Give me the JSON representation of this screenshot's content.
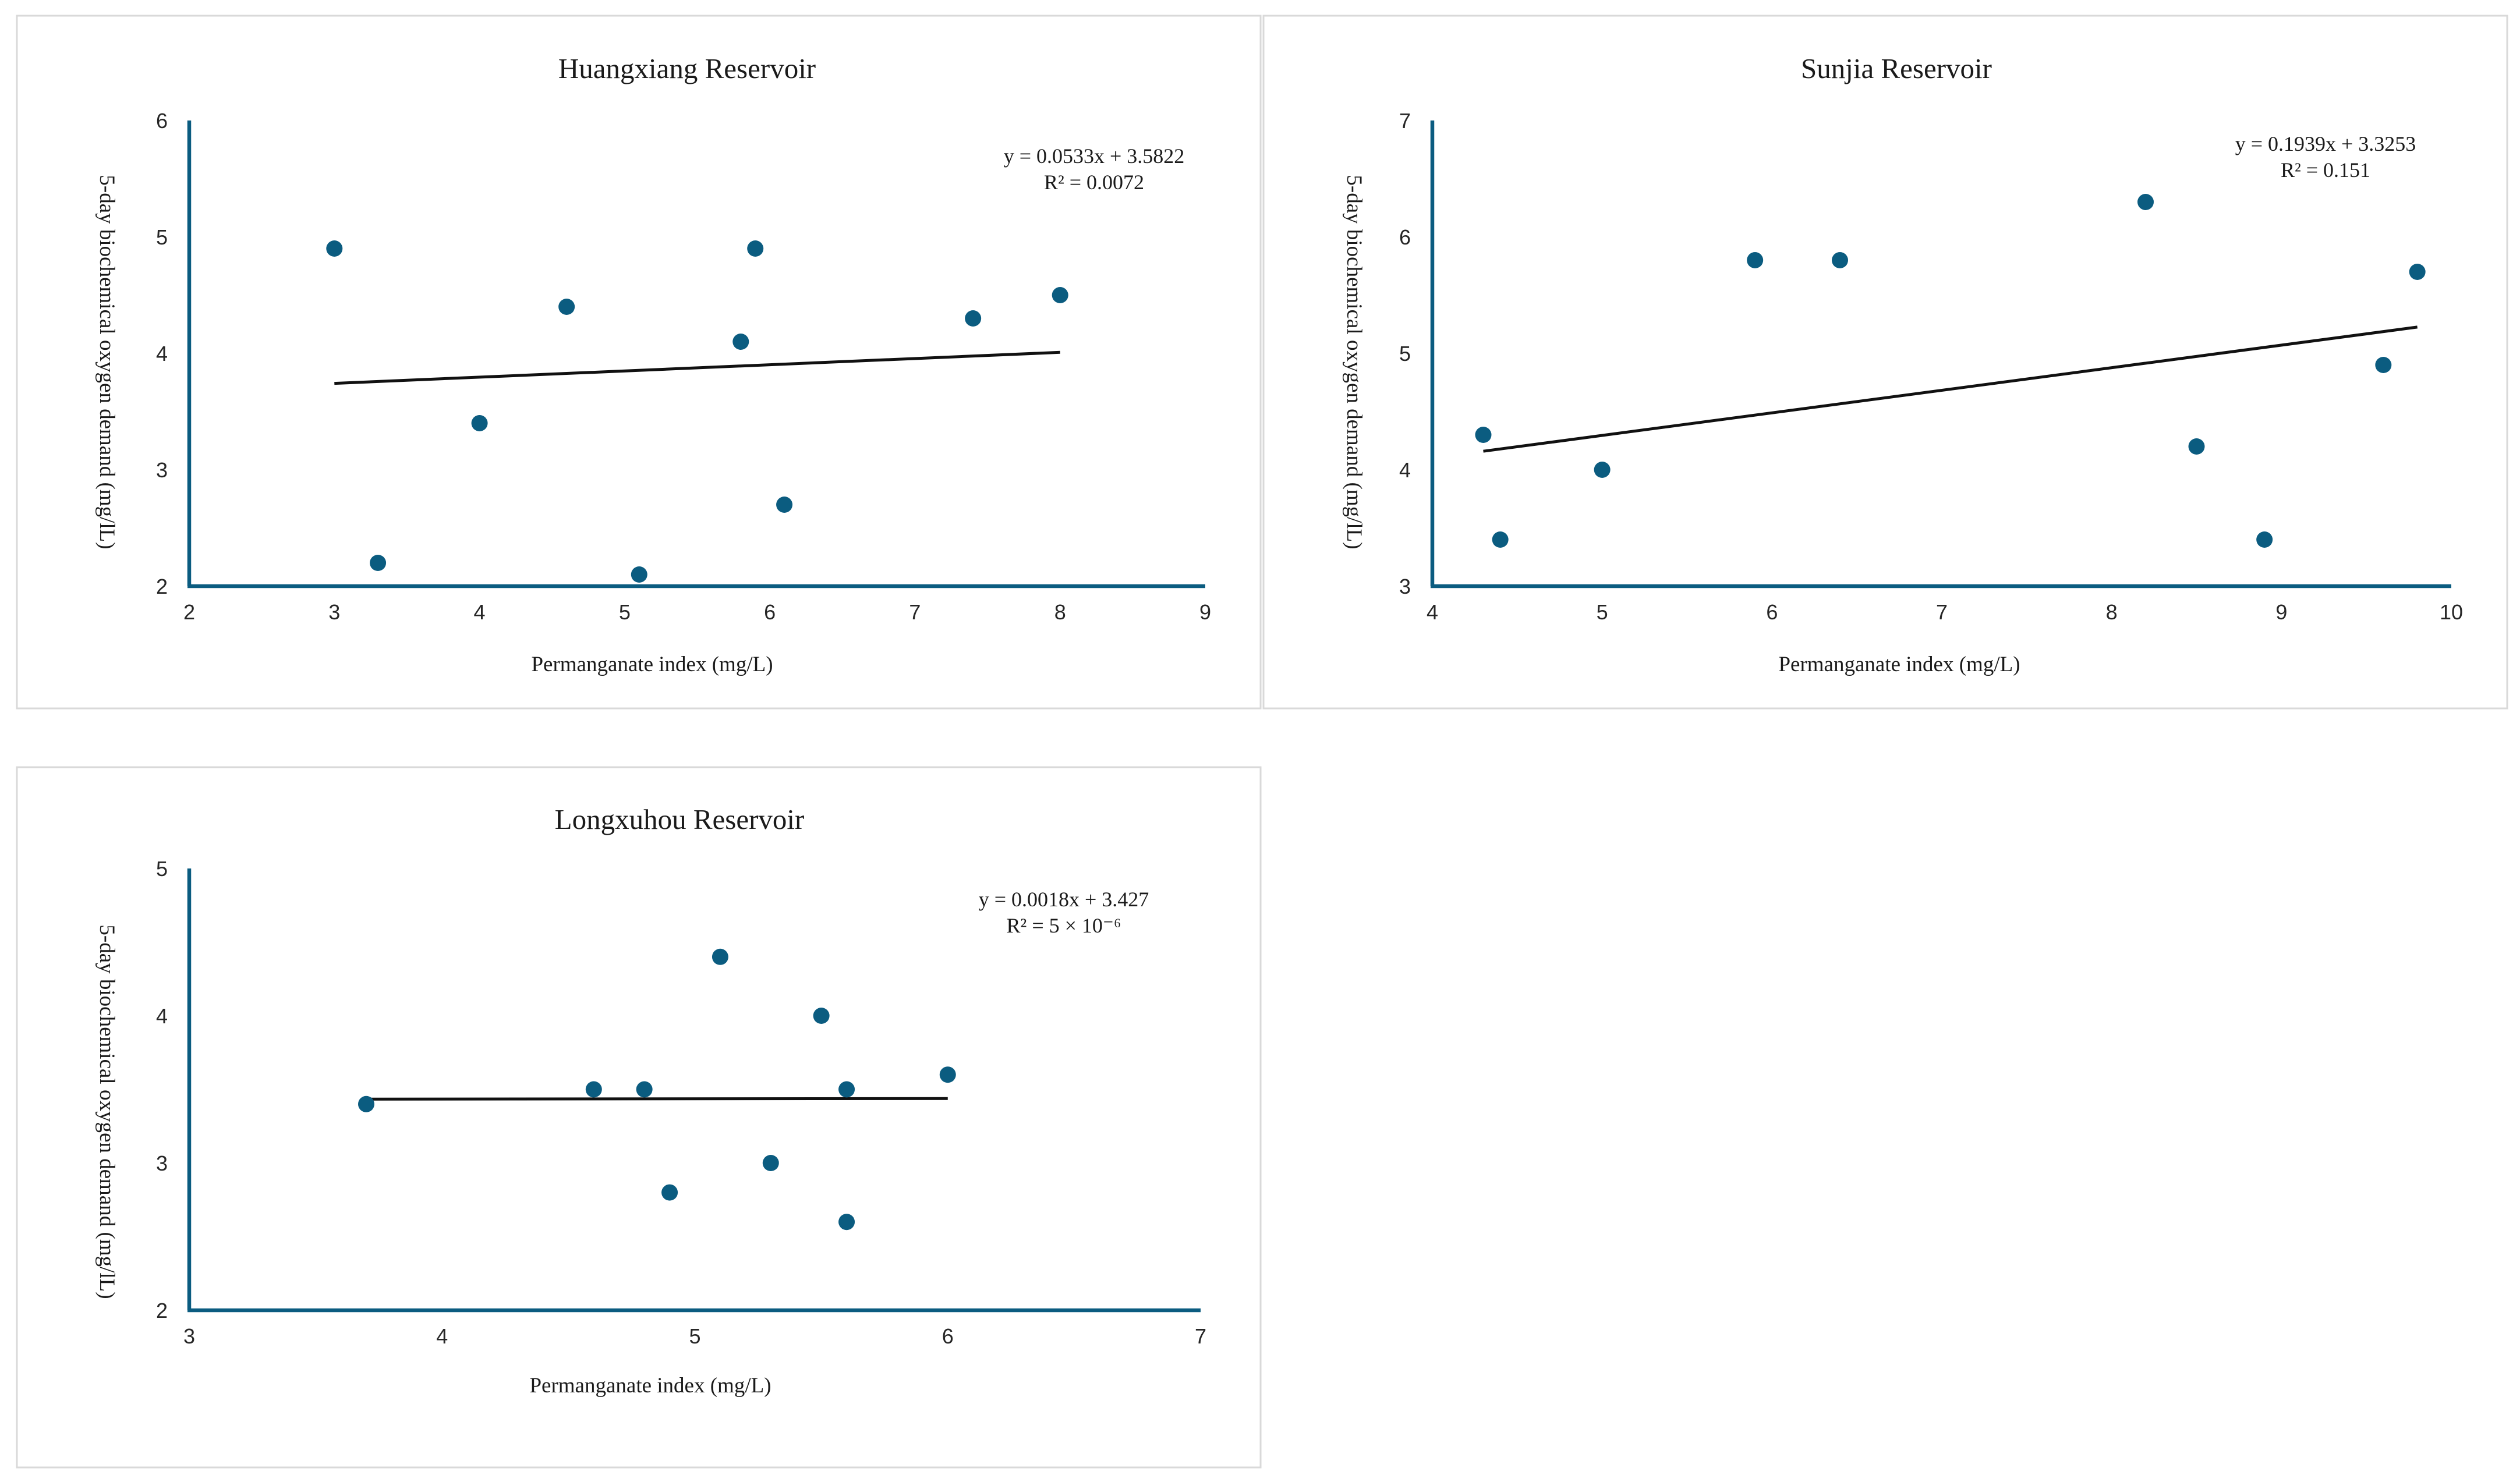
{
  "chart_data": [
    {
      "type": "scatter",
      "title": "Huangxiang Reservoir",
      "xlabel": "Permanganate index (mg/L)",
      "ylabel": "5-day biochemical oxygen demand (mg/lL)",
      "xlim": [
        2,
        9
      ],
      "ylim": [
        2,
        6
      ],
      "x_ticks": [
        2,
        3,
        4,
        5,
        6,
        7,
        8,
        9
      ],
      "y_ticks": [
        2,
        3,
        4,
        5,
        6
      ],
      "series": [
        {
          "name": "Huangxiang Reservoir",
          "color": "#0b5c80",
          "points": [
            {
              "x": 3.0,
              "y": 4.9
            },
            {
              "x": 3.3,
              "y": 2.2
            },
            {
              "x": 4.0,
              "y": 3.4
            },
            {
              "x": 4.6,
              "y": 4.4
            },
            {
              "x": 5.1,
              "y": 2.1
            },
            {
              "x": 5.8,
              "y": 4.1
            },
            {
              "x": 5.9,
              "y": 4.9
            },
            {
              "x": 6.1,
              "y": 2.7
            },
            {
              "x": 7.4,
              "y": 4.3
            },
            {
              "x": 8.0,
              "y": 4.5
            }
          ]
        }
      ],
      "trendline": {
        "slope": 0.0533,
        "intercept": 3.5822,
        "x_range": [
          3.0,
          8.0
        ]
      },
      "equation": "y = 0.0533x + 3.5822",
      "r_squared": "R² = 0.0072",
      "grid": false
    },
    {
      "type": "scatter",
      "title": "Sunjia Reservoir",
      "xlabel": "Permanganate index (mg/L)",
      "ylabel": "5-day biochemical oxygen demand (mg/lL)",
      "xlim": [
        4,
        10
      ],
      "ylim": [
        3,
        7
      ],
      "x_ticks": [
        4,
        5,
        6,
        7,
        8,
        9,
        10
      ],
      "y_ticks": [
        3,
        4,
        5,
        6,
        7
      ],
      "series": [
        {
          "name": "Sunjia Reservoir",
          "color": "#0b5c80",
          "points": [
            {
              "x": 4.3,
              "y": 4.3
            },
            {
              "x": 4.4,
              "y": 3.4
            },
            {
              "x": 5.0,
              "y": 4.0
            },
            {
              "x": 5.9,
              "y": 5.8
            },
            {
              "x": 6.4,
              "y": 5.8
            },
            {
              "x": 8.2,
              "y": 6.3
            },
            {
              "x": 8.5,
              "y": 4.2
            },
            {
              "x": 8.9,
              "y": 3.4
            },
            {
              "x": 9.6,
              "y": 4.9
            },
            {
              "x": 9.8,
              "y": 5.7
            }
          ]
        }
      ],
      "trendline": {
        "slope": 0.1939,
        "intercept": 3.3253,
        "x_range": [
          4.3,
          9.8
        ]
      },
      "equation": "y = 0.1939x + 3.3253",
      "r_squared": "R² = 0.151",
      "grid": false
    },
    {
      "type": "scatter",
      "title": "Longxuhou Reservoir",
      "xlabel": "Permanganate index (mg/L)",
      "ylabel": "5-day biochemical oxygen demand (mg/lL)",
      "xlim": [
        3,
        7
      ],
      "ylim": [
        2,
        5
      ],
      "x_ticks": [
        3,
        4,
        5,
        6,
        7
      ],
      "y_ticks": [
        2,
        3,
        4,
        5
      ],
      "series": [
        {
          "name": "Longxuhou Reservoir",
          "color": "#0b5c80",
          "points": [
            {
              "x": 3.7,
              "y": 3.4
            },
            {
              "x": 4.6,
              "y": 3.5
            },
            {
              "x": 4.8,
              "y": 3.5
            },
            {
              "x": 4.9,
              "y": 2.8
            },
            {
              "x": 5.1,
              "y": 4.4
            },
            {
              "x": 5.3,
              "y": 3.0
            },
            {
              "x": 5.5,
              "y": 4.0
            },
            {
              "x": 5.6,
              "y": 3.5
            },
            {
              "x": 5.6,
              "y": 2.6
            },
            {
              "x": 6.0,
              "y": 3.6
            }
          ]
        }
      ],
      "trendline": {
        "slope": 0.0018,
        "intercept": 3.427,
        "x_range": [
          3.7,
          6.0
        ]
      },
      "equation": "y = 0.0018x + 3.427",
      "r_squared": "R² = 5 × 10⁻⁶",
      "grid": false
    }
  ]
}
